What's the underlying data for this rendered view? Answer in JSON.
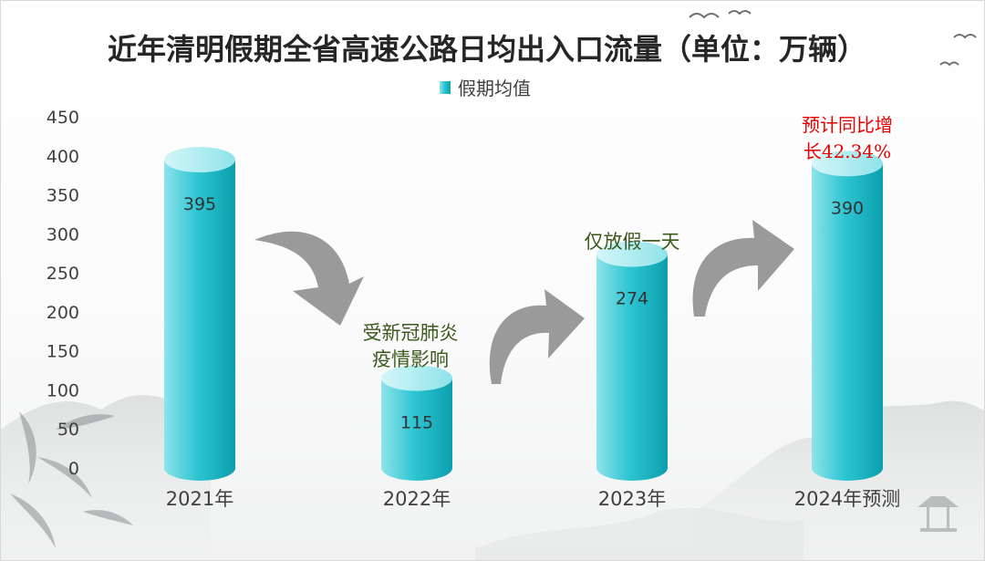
{
  "chart_data": {
    "type": "bar",
    "title": "近年清明假期全省高速公路日均出入口流量（单位：万辆）",
    "legend": {
      "label": "假期均值",
      "position": "top"
    },
    "categories": [
      "2021年",
      "2022年",
      "2023年",
      "2024年预测"
    ],
    "series": [
      {
        "name": "假期均值",
        "values": [
          395,
          115,
          274,
          390
        ]
      }
    ],
    "ylim": [
      0,
      450
    ],
    "yticks": [
      0,
      50,
      100,
      150,
      200,
      250,
      300,
      350,
      400,
      450
    ],
    "grid": false,
    "bar_style": "cylinder",
    "colors": {
      "bar_top": "#8fe3ea",
      "bar_body": "#19b7c6",
      "bar_dark": "#0b9fad",
      "arrow": "#9a9a9a",
      "note_green": "#3d5a1e",
      "note_red": "#e60000"
    },
    "annotations": [
      {
        "category": "2022年",
        "lines": [
          "受新冠肺炎",
          "疫情影响"
        ]
      },
      {
        "category": "2023年",
        "lines": [
          "仅放假一天"
        ]
      },
      {
        "category": "2024年预测",
        "lines": [
          "预计同比增",
          "长42.34%"
        ]
      }
    ]
  }
}
